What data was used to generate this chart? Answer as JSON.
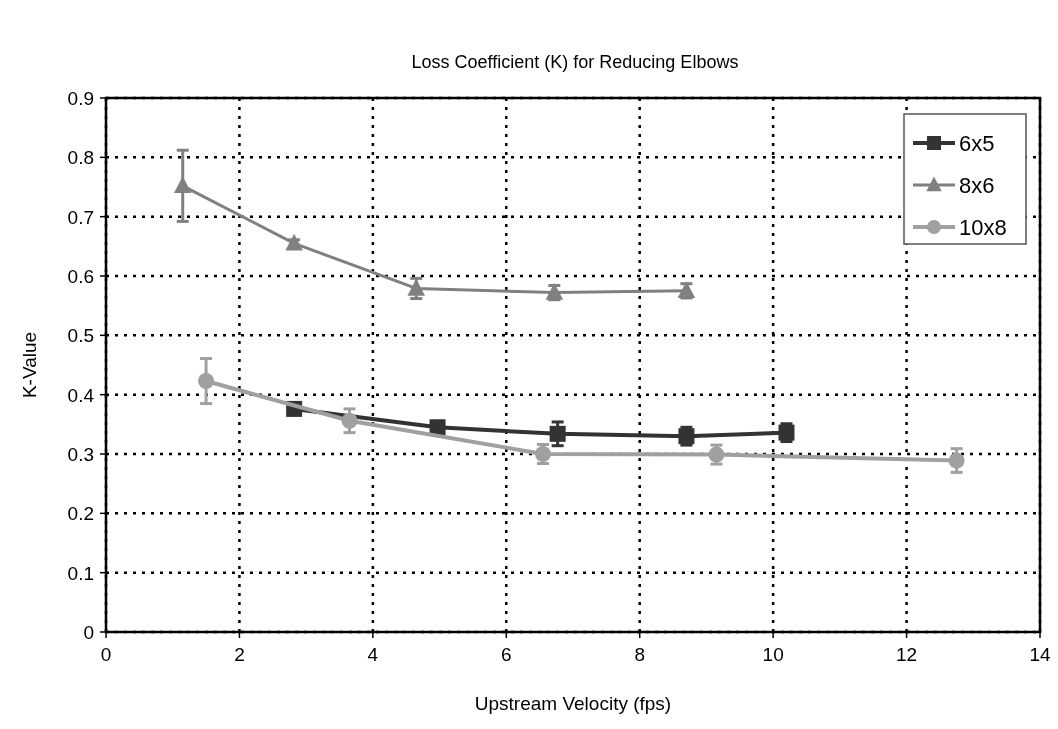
{
  "chart_data": {
    "type": "line",
    "title": "Loss Coefficient (K) for Reducing Elbows",
    "xlabel": "Upstream Velocity (fps)",
    "ylabel": "K-Value",
    "xlim": [
      0,
      14
    ],
    "xticks": [
      0,
      2,
      4,
      6,
      8,
      10,
      12,
      14
    ],
    "ylim": [
      0,
      0.9
    ],
    "yticks": [
      0,
      0.1,
      0.2,
      0.3,
      0.4,
      0.5,
      0.6,
      0.7,
      0.8,
      0.9
    ],
    "grid": true,
    "legend": "top right",
    "series": [
      {
        "name": "6x5",
        "color": "#333333",
        "marker": "square",
        "x": [
          2.82,
          4.97,
          6.77,
          8.7,
          10.2
        ],
        "values": [
          0.376,
          0.345,
          0.334,
          0.33,
          0.336
        ],
        "errors": [
          0.005,
          0.01,
          0.02,
          0.015,
          0.015
        ]
      },
      {
        "name": "8x6",
        "color": "#808080",
        "marker": "triangle",
        "x": [
          1.15,
          2.82,
          4.65,
          6.72,
          8.7
        ],
        "values": [
          0.752,
          0.655,
          0.579,
          0.572,
          0.575
        ],
        "errors": [
          0.06,
          0.006,
          0.017,
          0.012,
          0.012
        ]
      },
      {
        "name": "10x8",
        "color": "#a0a0a0",
        "marker": "circle",
        "x": [
          1.5,
          3.65,
          6.55,
          9.15,
          12.75
        ],
        "values": [
          0.423,
          0.356,
          0.3,
          0.299,
          0.289
        ],
        "errors": [
          0.038,
          0.02,
          0.016,
          0.016,
          0.02
        ]
      }
    ]
  }
}
